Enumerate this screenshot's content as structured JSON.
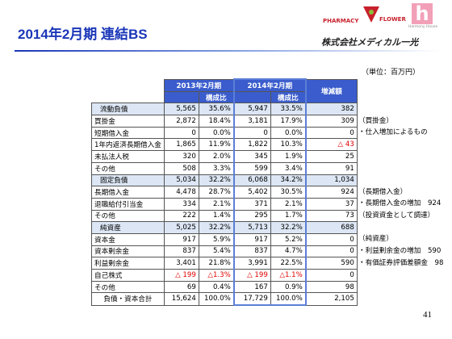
{
  "header": {
    "title": "2014年2月期 連結BS",
    "logo_pharmacy": "PHARMACY",
    "logo_flower": "FLOWER",
    "logo_harmony": "Harmony House",
    "company": "株式会社メディカル一光"
  },
  "unit": "（単位：百万円）",
  "table": {
    "period_1": "2013年2月期",
    "period_2": "2014年2月期",
    "ratio_1": "構成比",
    "ratio_2": "構成比",
    "change": "増減額",
    "rows": [
      {
        "cells": [
          "流動負債",
          "5,565",
          "35.6%",
          "5,947",
          "33.5%",
          "382"
        ],
        "highlight": true
      },
      {
        "cells": [
          "買掛金",
          "2,872",
          "18.4%",
          "3,181",
          "17.9%",
          "309"
        ],
        "note": "（買掛金）"
      },
      {
        "cells": [
          "短期借入金",
          "0",
          "0.0%",
          "0",
          "0.0%",
          "0"
        ],
        "note": "・仕入増加によるもの"
      },
      {
        "cells": [
          "1年内返済長期借入金",
          "1,865",
          "11.9%",
          "1,822",
          "10.3%",
          "△ 43"
        ],
        "red_cells": [
          5
        ]
      },
      {
        "cells": [
          "未払法人税",
          "320",
          "2.0%",
          "345",
          "1.9%",
          "25"
        ]
      },
      {
        "cells": [
          "その他",
          "508",
          "3.3%",
          "599",
          "3.4%",
          "91"
        ]
      },
      {
        "cells": [
          "固定負債",
          "5,034",
          "32.2%",
          "6,068",
          "34.2%",
          "1,034"
        ],
        "highlight": true
      },
      {
        "cells": [
          "長期借入金",
          "4,478",
          "28.7%",
          "5,402",
          "30.5%",
          "924"
        ],
        "note": "（長期借入金）"
      },
      {
        "cells": [
          "退職給付引当金",
          "334",
          "2.1%",
          "371",
          "2.1%",
          "37"
        ],
        "note": "・長期借入金の増加　924"
      },
      {
        "cells": [
          "その他",
          "222",
          "1.4%",
          "295",
          "1.7%",
          "73"
        ],
        "note": "（投資資金として調達）"
      },
      {
        "cells": [
          "純資産",
          "5,025",
          "32.2%",
          "5,713",
          "32.2%",
          "688"
        ],
        "highlight": true
      },
      {
        "cells": [
          "資本金",
          "917",
          "5.9%",
          "917",
          "5.2%",
          "0"
        ],
        "note": "（純資産）"
      },
      {
        "cells": [
          "資本剰余金",
          "837",
          "5.4%",
          "837",
          "4.7%",
          "0"
        ],
        "note": "・利益剰余金の増加　590"
      },
      {
        "cells": [
          "利益剰余金",
          "3,401",
          "21.8%",
          "3,991",
          "22.5%",
          "590"
        ],
        "note": "・有価証券評価差額金　98"
      },
      {
        "cells": [
          "自己株式",
          "△ 199",
          "△1.3%",
          "△ 199",
          "△1.1%",
          "0"
        ],
        "red_cells": [
          1,
          2,
          3,
          4
        ]
      },
      {
        "cells": [
          "その他",
          "69",
          "0.4%",
          "167",
          "0.9%",
          "98"
        ]
      },
      {
        "cells": [
          "負債・資本合計",
          "15,624",
          "100.0%",
          "17,729",
          "100.0%",
          "2,105"
        ],
        "total": true
      }
    ]
  },
  "page_number": "41"
}
